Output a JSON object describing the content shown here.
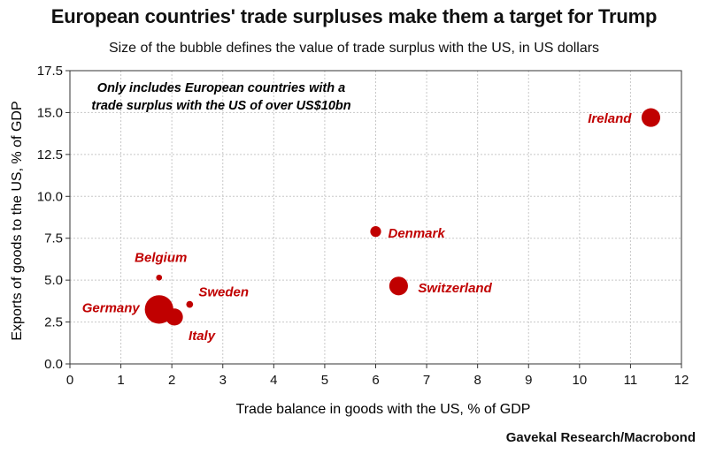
{
  "title": "European countries' trade surpluses make them a target for Trump",
  "subtitle": "Size of the bubble defines the value of trade surplus with the US, in US dollars",
  "note_lines": [
    "Only includes European countries with a",
    "trade surplus with the US of over US$10bn"
  ],
  "source": "Gavekal Research/Macrobond",
  "colors": {
    "bubble": "#c00000",
    "label": "#c00000",
    "grid": "#c8c8c8",
    "axis": "#333333"
  },
  "chart_data": {
    "type": "scatter",
    "title": "European countries' trade surpluses make them a target for Trump",
    "subtitle": "Size of the bubble defines the value of trade surplus with the US, in US dollars",
    "xlabel": "Trade balance in goods with the US, % of GDP",
    "ylabel": "Exports of goods to the US, % of GDP",
    "xlim": [
      0,
      12
    ],
    "ylim": [
      0,
      17.5
    ],
    "xticks": [
      "0",
      "1",
      "2",
      "3",
      "4",
      "5",
      "6",
      "7",
      "8",
      "9",
      "10",
      "11",
      "12"
    ],
    "yticks": [
      "0.0",
      "2.5",
      "5.0",
      "7.5",
      "10.0",
      "12.5",
      "15.0",
      "17.5"
    ],
    "grid": true,
    "points": [
      {
        "name": "Ireland",
        "x": 11.4,
        "y": 14.7,
        "size": 3
      },
      {
        "name": "Denmark",
        "x": 6.0,
        "y": 7.9,
        "size": 1
      },
      {
        "name": "Switzerland",
        "x": 6.45,
        "y": 4.65,
        "size": 3
      },
      {
        "name": "Belgium",
        "x": 1.75,
        "y": 5.15,
        "size": 0.3
      },
      {
        "name": "Sweden",
        "x": 2.35,
        "y": 3.55,
        "size": 0.4
      },
      {
        "name": "Germany",
        "x": 1.75,
        "y": 3.25,
        "size": 7
      },
      {
        "name": "Italy",
        "x": 2.05,
        "y": 2.8,
        "size": 2.5
      }
    ]
  }
}
